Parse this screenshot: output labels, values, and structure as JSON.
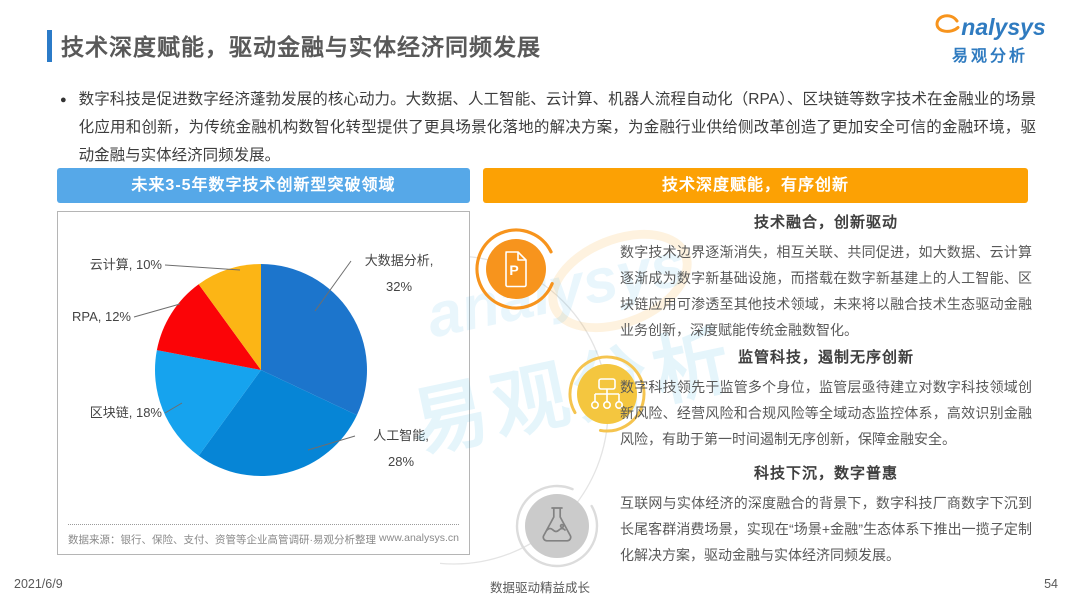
{
  "header": {
    "title": "技术深度赋能，驱动金融与实体经济同频发展",
    "logo": {
      "brand_latin": "nalysys",
      "brand_cn": "易观分析"
    }
  },
  "intro": {
    "bullet": "●",
    "text": "数字科技是促进数字经济蓬勃发展的核心动力。大数据、人工智能、云计算、机器人流程自动化（RPA）、区块链等数字技术在金融业的场景化应用和创新，为传统金融机构数智化转型提供了更具场景化落地的解决方案，为金融行业供给侧改革创造了更加安全可信的金融环境，驱动金融与实体经济同频发展。"
  },
  "left_panel": {
    "header": "未来3-5年数字技术创新型突破领域",
    "source": "数据来源：银行、保险、支付、资管等企业高管调研·易观分析整理",
    "website": "www.analysys.cn"
  },
  "chart_data": {
    "type": "pie",
    "title": "未来3-5年数字技术创新型突破领域",
    "categories": [
      "大数据分析",
      "人工智能",
      "区块链",
      "RPA",
      "云计算"
    ],
    "values": [
      32,
      28,
      18,
      12,
      10
    ],
    "unit": "%",
    "colors": [
      "#1C75CC",
      "#0685D6",
      "#16A3EE",
      "#FB0407",
      "#FCB515"
    ],
    "start": "12-oclock-clockwise",
    "labels": {
      "bigdata_line1": "大数据分析,",
      "bigdata_line2": "32%",
      "ai_line1": "人工智能,",
      "ai_line2": "28%",
      "blockchain": "区块链, 18%",
      "rpa": "RPA, 12%",
      "cloud": "云计算, 10%"
    }
  },
  "right_panel": {
    "header": "技术深度赋能，有序创新",
    "sections": [
      {
        "icon": "document-p",
        "title": "技术融合，创新驱动",
        "body": "数字技术边界逐渐消失，相互关联、共同促进，如大数据、云计算逐渐成为数字新基础设施，而搭载在数字新基建上的人工智能、区块链应用可渗透至其他技术领域，未来将以融合技术生态驱动金融业务创新，深度赋能传统金融数智化。"
      },
      {
        "icon": "org-chart",
        "title": "监管科技，遏制无序创新",
        "body": "数字科技领先于监管多个身位，监管层亟待建立对数字科技领域创新风险、经营风险和合规风险等全域动态监控体系，高效识别金融风险，有助于第一时间遏制无序创新，保障金融安全。"
      },
      {
        "icon": "flask",
        "title": "科技下沉，数字普惠",
        "body": "互联网与实体经济的深度融合的背景下，数字科技厂商数字下沉到长尾客群消费场景，实现在“场景+金融”生态体系下推出一揽子定制化解决方案，驱动金融与实体经济同频发展。"
      }
    ]
  },
  "footer": {
    "date": "2021/6/9",
    "slogan": "数据驱动精益成长",
    "page": "54"
  },
  "watermark": {
    "latin": "analysys",
    "cn": "易观分析"
  },
  "theme": {
    "accent_bar": "#2B7BC8",
    "left_header_bg": "#56A8E8",
    "right_header_bg": "#FCA104",
    "brand_blue": "#2F7BC0",
    "brand_orange": "#F7941D",
    "icon2_fill": "#F4C63F",
    "icon3_fill": "#CBCBCB"
  }
}
